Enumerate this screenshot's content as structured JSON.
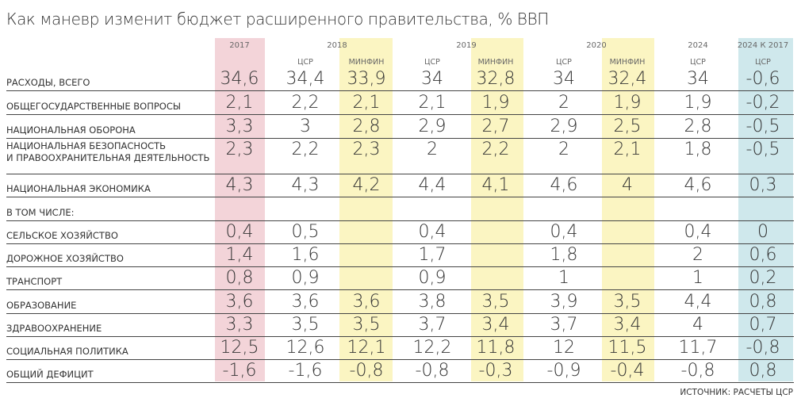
{
  "title": "Как маневр изменит бюджет расширенного правительства, % ВВП",
  "source": "ИСТОЧНИК: РАСЧЕТЫ ЦСР",
  "colors": {
    "col_2017": "#f3d4d9",
    "minfin": "#fbf5c2",
    "change": "#cfe8ec"
  },
  "chart_data": {
    "type": "table",
    "title": "Как маневр изменит бюджет расширенного правительства, % ВВП",
    "year_headers": [
      "2017",
      "2018",
      "2019",
      "2020",
      "2024",
      "2024 К 2017"
    ],
    "columns": [
      {
        "year": "2017",
        "source": ""
      },
      {
        "year": "2018",
        "source": "ЦСР"
      },
      {
        "year": "2018",
        "source": "МИНФИН"
      },
      {
        "year": "2019",
        "source": "ЦСР"
      },
      {
        "year": "2019",
        "source": "МИНФИН"
      },
      {
        "year": "2020",
        "source": "ЦСР"
      },
      {
        "year": "2020",
        "source": "МИНФИН"
      },
      {
        "year": "2024",
        "source": "ЦСР"
      },
      {
        "year": "2024 К 2017",
        "source": "ЦСР"
      }
    ],
    "rows": [
      {
        "label": "РАСХОДЫ, ВСЕГО",
        "values": [
          "34,6",
          "34,4",
          "33,9",
          "34",
          "32,8",
          "34",
          "32,4",
          "34",
          "-0,6"
        ]
      },
      {
        "label": "ОБЩЕГОСУДАРСТВЕННЫЕ ВОПРОСЫ",
        "values": [
          "2,1",
          "2,2",
          "2,1",
          "2,1",
          "1,9",
          "2",
          "1,9",
          "1,9",
          "-0,2"
        ]
      },
      {
        "label": "НАЦИОНАЛЬНАЯ ОБОРОНА",
        "values": [
          "3,3",
          "3",
          "2,8",
          "2,9",
          "2,7",
          "2,9",
          "2,5",
          "2,8",
          "-0,5"
        ]
      },
      {
        "label": "НАЦИОНАЛЬНАЯ БЕЗОПАСНОСТЬ",
        "label2": "И ПРАВООХРАНИТЕЛЬНАЯ ДЕЯТЕЛЬНОСТЬ",
        "values": [
          "2,3",
          "2,2",
          "2,3",
          "2",
          "2,2",
          "2",
          "2,1",
          "1,8",
          "-0,5"
        ]
      },
      {
        "label": "НАЦИОНАЛЬНАЯ ЭКОНОМИКА",
        "values": [
          "4,3",
          "4,3",
          "4,2",
          "4,4",
          "4,1",
          "4,6",
          "4",
          "4,6",
          "0,3"
        ]
      },
      {
        "label": "В ТОМ ЧИСЛЕ:",
        "values": [
          "",
          "",
          "",
          "",
          "",
          "",
          "",
          "",
          ""
        ]
      },
      {
        "label": "СЕЛЬСКОЕ ХОЗЯЙСТВО",
        "values": [
          "0,4",
          "0,5",
          "",
          "0,4",
          "",
          "0,4",
          "",
          "0,4",
          "0"
        ]
      },
      {
        "label": "ДОРОЖНОЕ ХОЗЯЙСТВО",
        "values": [
          "1,4",
          "1,6",
          "",
          "1,7",
          "",
          "1,8",
          "",
          "2",
          "0,6"
        ]
      },
      {
        "label": "ТРАНСПОРТ",
        "values": [
          "0,8",
          "0,9",
          "",
          "0,9",
          "",
          "1",
          "",
          "1",
          "0,2"
        ]
      },
      {
        "label": "ОБРАЗОВАНИЕ",
        "values": [
          "3,6",
          "3,6",
          "3,6",
          "3,8",
          "3,5",
          "3,9",
          "3,5",
          "4,4",
          "0,8"
        ]
      },
      {
        "label": "ЗДРАВООХРАНЕНИЕ",
        "values": [
          "3,3",
          "3,5",
          "3,5",
          "3,7",
          "3,4",
          "3,7",
          "3,4",
          "4",
          "0,7"
        ]
      },
      {
        "label": "СОЦИАЛЬНАЯ ПОЛИТИКА",
        "values": [
          "12,5",
          "12,6",
          "12,1",
          "12,2",
          "11,8",
          "12",
          "11,5",
          "11,7",
          "-0,8"
        ]
      },
      {
        "label": "ОБЩИЙ ДЕФИЦИТ",
        "values": [
          "-1,6",
          "-1,6",
          "-0,8",
          "-0,8",
          "-0,3",
          "-0,9",
          "-0,4",
          "-0,8",
          "0,8"
        ]
      }
    ]
  }
}
